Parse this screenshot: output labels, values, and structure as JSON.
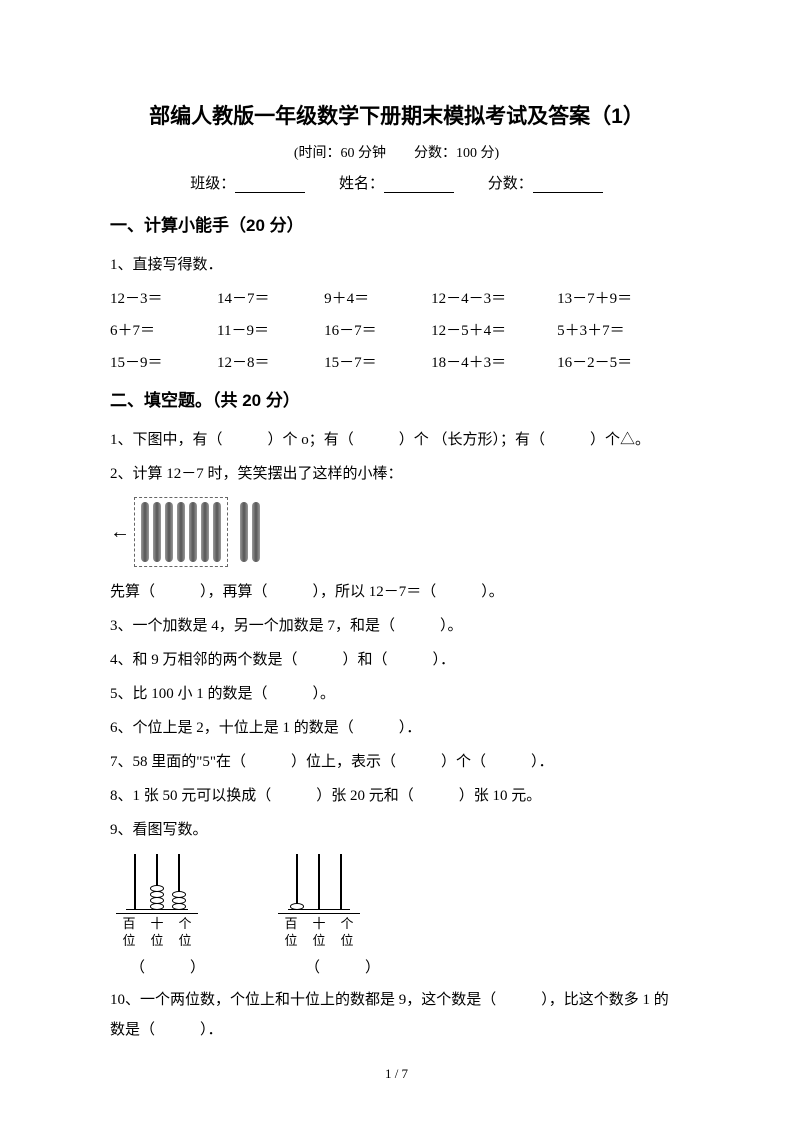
{
  "title": "部编人教版一年级数学下册期末模拟考试及答案（1）",
  "subtitle": "(时间：60 分钟　　分数：100 分)",
  "info": {
    "class_label": "班级：",
    "name_label": "姓名：",
    "score_label": "分数："
  },
  "section1": {
    "title": "一、计算小能手（20 分）",
    "q1_label": "1、直接写得数．",
    "rows": [
      [
        "12－3＝",
        "14－7＝",
        "9＋4＝",
        "12－4－3＝",
        "13－7＋9＝"
      ],
      [
        "6＋7＝",
        "11－9＝",
        "16－7＝",
        "12－5＋4＝",
        "5＋3＋7＝"
      ],
      [
        "15－9＝",
        "12－8＝",
        "15－7＝",
        "18－4＋3＝",
        "16－2－5＝"
      ]
    ]
  },
  "section2": {
    "title": "二、填空题。（共 20 分）",
    "q1": "1、下图中，有（　　　）个 o；有（　　　）个 （长方形）；有（　　　）个△。",
    "q2": "2、计算 12－7 时，笑笑摆出了这样的小棒：",
    "q2_after": "先算（　　　），再算（　　　），所以 12－7＝（　　　）。",
    "q3": "3、一个加数是 4，另一个加数是 7，和是（　　　）。",
    "q4": "4、和 9 万相邻的两个数是（　　　）和（　　　）．",
    "q5": "5、比 100 小 1 的数是（　　　）。",
    "q6": "6、个位上是 2，十位上是 1 的数是（　　　）．",
    "q7": "7、58 里面的\"5\"在（　　　）位上，表示（　　　）个（　　　）．",
    "q8": "8、1 张 50 元可以换成（　　　）张 20 元和（　　　）张 10 元。",
    "q9": "9、看图写数。",
    "q10": "10、一个两位数，个位上和十位上的数都是 9，这个数是（　　　），比这个数多 1 的数是（　　　）．"
  },
  "sticks": {
    "box_count": 7,
    "outside_count": 2,
    "stick_color": "#666666"
  },
  "abacus": {
    "a1": {
      "beads": [
        0,
        4,
        3
      ],
      "labels": [
        "百位",
        "十位",
        "个位"
      ]
    },
    "a2": {
      "beads": [
        1,
        0,
        0
      ],
      "labels": [
        "百位",
        "十位",
        "个位"
      ]
    }
  },
  "paren": {
    "p1": "（　　　）",
    "p2": "（　　　）"
  },
  "page_num": "1 / 7",
  "colors": {
    "text": "#000000",
    "bg": "#ffffff",
    "stick_gradient": [
      "#999999",
      "#555555",
      "#999999"
    ],
    "dash_border": "#666666"
  }
}
